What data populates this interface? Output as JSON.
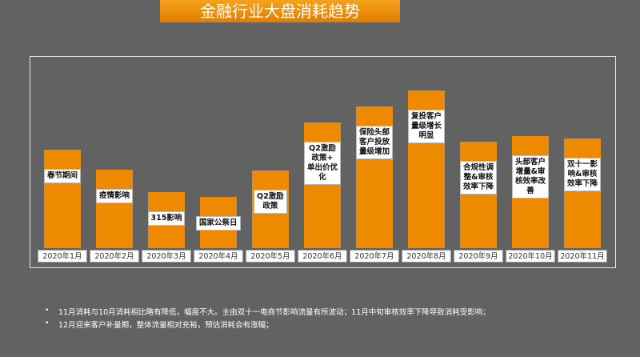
{
  "chart_data": {
    "type": "bar",
    "title": "金融行业大盘消耗趋势",
    "categories": [
      "2020年1月",
      "2020年2月",
      "2020年3月",
      "2020年4月",
      "2020年5月",
      "2020年6月",
      "2020年7月",
      "2020年8月",
      "2020年9月",
      "2020年10月",
      "2020年11月"
    ],
    "values": [
      123,
      98,
      70,
      64,
      97,
      157,
      177,
      197,
      133,
      140,
      137
    ],
    "color": "#ee8a00",
    "ylim": [
      0,
      240
    ],
    "annotations": [
      "春节期间",
      "疫情影响",
      "315影响",
      "国家公祭日",
      "Q2激励\n政策",
      "Q2激励\n政策+\n单出价优\n化",
      "保险头部\n客户投放\n量级增加",
      "复投客户\n量级增长\n明显",
      "合规性调\n整&审核\n效率下降",
      "头部客户\n增量&审\n核效率改\n善",
      "双十一影\n响&审核\n效率下降"
    ],
    "notes": [
      "11月消耗与10月消耗相比略有降低，幅度不大。主由双十一电商节影响流量有所波动；11月中旬审核效率下降导致消耗受影响；",
      "12月迎来客户补量期，整体流量相对充裕，预估消耗会有涨幅；"
    ]
  }
}
